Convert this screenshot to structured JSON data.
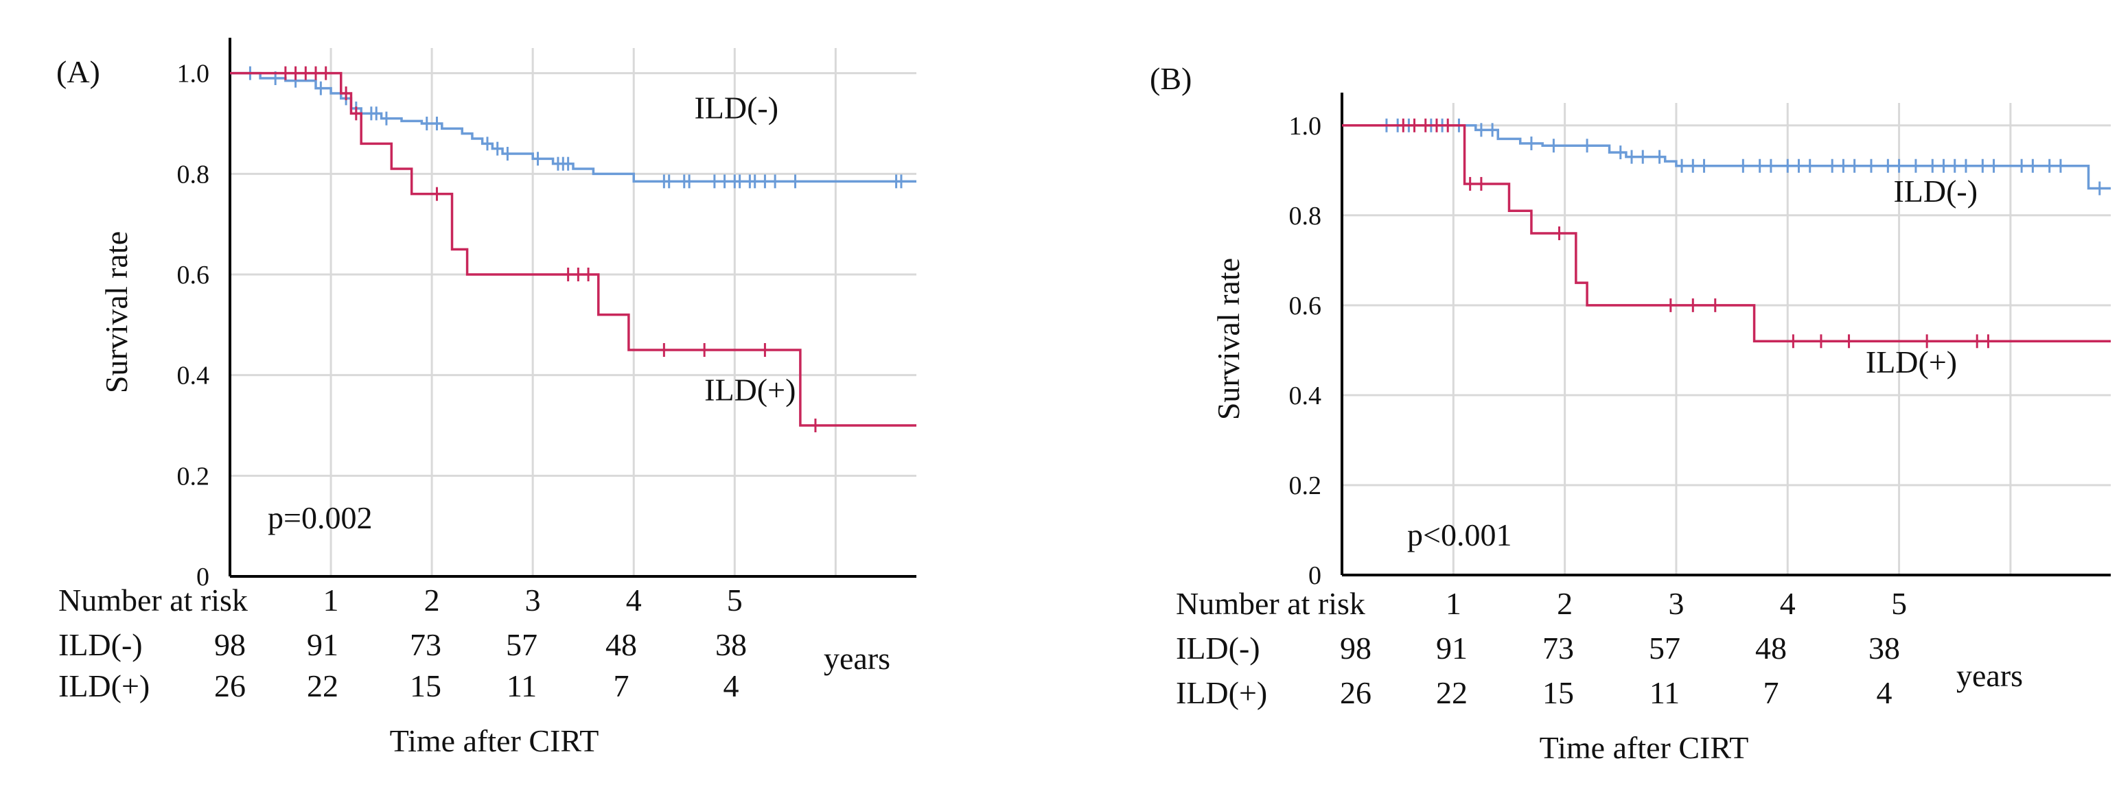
{
  "figure": {
    "colors": {
      "ild_neg": "#6A9BD8",
      "ild_pos": "#C8265A",
      "grid": "#D9D9D9",
      "axis": "#000000"
    }
  },
  "chart_data": [
    {
      "panel_label": "(A)",
      "type": "line",
      "title": "",
      "xlabel": "Time after CIRT",
      "ylabel": "Survival rate",
      "xlim": [
        0,
        6.8
      ],
      "ylim": [
        0,
        1.05
      ],
      "x_tick_values": [
        1,
        2,
        3,
        4,
        5
      ],
      "y_tick_values": [
        0,
        0.2,
        0.4,
        0.6,
        0.8,
        1.0
      ],
      "y_tick_labels": [
        "0",
        "0.2",
        "0.4",
        "0.6",
        "0.8",
        "1.0"
      ],
      "grid": true,
      "p_value": "p=0.002",
      "series": [
        {
          "name": "ILD(-)",
          "color_key": "ild_neg",
          "label_at": [
            4.6,
            0.91
          ],
          "steps": [
            [
              0,
              1.0
            ],
            [
              0.3,
              0.99
            ],
            [
              0.55,
              0.985
            ],
            [
              0.85,
              0.97
            ],
            [
              1.0,
              0.96
            ],
            [
              1.1,
              0.95
            ],
            [
              1.2,
              0.93
            ],
            [
              1.3,
              0.92
            ],
            [
              1.5,
              0.91
            ],
            [
              1.7,
              0.905
            ],
            [
              1.9,
              0.9
            ],
            [
              2.1,
              0.89
            ],
            [
              2.3,
              0.88
            ],
            [
              2.4,
              0.87
            ],
            [
              2.5,
              0.86
            ],
            [
              2.6,
              0.85
            ],
            [
              2.7,
              0.84
            ],
            [
              3.0,
              0.83
            ],
            [
              3.2,
              0.82
            ],
            [
              3.4,
              0.81
            ],
            [
              3.6,
              0.8
            ],
            [
              4.0,
              0.785
            ],
            [
              6.8,
              0.785
            ]
          ],
          "censor_x": [
            0.2,
            0.45,
            0.65,
            0.9,
            1.15,
            1.25,
            1.4,
            1.45,
            1.55,
            1.95,
            2.05,
            2.55,
            2.65,
            2.75,
            3.05,
            3.25,
            3.3,
            3.35,
            4.3,
            4.35,
            4.5,
            4.55,
            4.8,
            4.9,
            5.0,
            5.05,
            5.15,
            5.2,
            5.3,
            5.4,
            5.6,
            6.6,
            6.65
          ]
        },
        {
          "name": "ILD(+)",
          "color_key": "ild_pos",
          "label_at": [
            4.7,
            0.35
          ],
          "steps": [
            [
              0,
              1.0
            ],
            [
              1.0,
              1.0
            ],
            [
              1.1,
              0.96
            ],
            [
              1.2,
              0.92
            ],
            [
              1.3,
              0.86
            ],
            [
              1.6,
              0.86
            ],
            [
              1.6,
              0.81
            ],
            [
              1.8,
              0.81
            ],
            [
              1.8,
              0.76
            ],
            [
              2.2,
              0.76
            ],
            [
              2.2,
              0.65
            ],
            [
              2.35,
              0.65
            ],
            [
              2.35,
              0.6
            ],
            [
              3.65,
              0.6
            ],
            [
              3.65,
              0.52
            ],
            [
              3.95,
              0.52
            ],
            [
              3.95,
              0.45
            ],
            [
              5.65,
              0.45
            ],
            [
              5.65,
              0.3
            ],
            [
              6.8,
              0.3
            ]
          ],
          "censor_x": [
            0.55,
            0.65,
            0.75,
            0.85,
            0.95,
            1.15,
            1.25,
            2.05,
            3.35,
            3.45,
            3.55,
            4.3,
            4.7,
            5.3,
            5.8
          ]
        }
      ],
      "risk_table": {
        "header": "Number at risk",
        "time_labels": [
          "1",
          "2",
          "3",
          "4",
          "5"
        ],
        "units": "years",
        "rows": [
          {
            "label": "ILD(-)",
            "values": [
              "98",
              "91",
              "73",
              "57",
              "48",
              "38"
            ]
          },
          {
            "label": "ILD(+)",
            "values": [
              "26",
              "22",
              "15",
              "11",
              "7",
              "4"
            ]
          }
        ]
      }
    },
    {
      "panel_label": "(B)",
      "type": "line",
      "title": "",
      "xlabel": "Time after CIRT",
      "ylabel": "Survival rate",
      "xlim": [
        0,
        6.9
      ],
      "ylim": [
        0,
        1.05
      ],
      "x_tick_values": [
        1,
        2,
        3,
        4,
        5
      ],
      "y_tick_values": [
        0,
        0.2,
        0.4,
        0.6,
        0.8,
        1.0
      ],
      "y_tick_labels": [
        "0",
        "0.2",
        "0.4",
        "0.6",
        "0.8",
        "1.0"
      ],
      "grid": true,
      "p_value": "p<0.001",
      "series": [
        {
          "name": "ILD(-)",
          "color_key": "ild_neg",
          "label_at": [
            4.95,
            0.83
          ],
          "steps": [
            [
              0,
              1.0
            ],
            [
              1.0,
              1.0
            ],
            [
              1.2,
              0.99
            ],
            [
              1.4,
              0.97
            ],
            [
              1.6,
              0.96
            ],
            [
              1.8,
              0.955
            ],
            [
              2.4,
              0.94
            ],
            [
              2.55,
              0.93
            ],
            [
              2.9,
              0.92
            ],
            [
              3.0,
              0.91
            ],
            [
              6.7,
              0.91
            ],
            [
              6.7,
              0.86
            ],
            [
              6.9,
              0.86
            ]
          ],
          "censor_x": [
            0.4,
            0.5,
            0.6,
            0.8,
            0.9,
            1.05,
            1.25,
            1.35,
            1.7,
            1.9,
            2.2,
            2.5,
            2.6,
            2.7,
            2.85,
            3.05,
            3.15,
            3.25,
            3.6,
            3.75,
            3.85,
            4.0,
            4.1,
            4.2,
            4.4,
            4.5,
            4.6,
            4.75,
            4.9,
            5.0,
            5.15,
            5.3,
            5.4,
            5.5,
            5.6,
            5.75,
            5.85,
            6.1,
            6.2,
            6.35,
            6.45,
            6.8
          ]
        },
        {
          "name": "ILD(+)",
          "color_key": "ild_pos",
          "label_at": [
            4.7,
            0.45
          ],
          "steps": [
            [
              0,
              1.0
            ],
            [
              1.0,
              1.0
            ],
            [
              1.1,
              0.87
            ],
            [
              1.3,
              0.87
            ],
            [
              1.5,
              0.87
            ],
            [
              1.5,
              0.81
            ],
            [
              1.7,
              0.81
            ],
            [
              1.7,
              0.76
            ],
            [
              2.1,
              0.76
            ],
            [
              2.1,
              0.65
            ],
            [
              2.2,
              0.65
            ],
            [
              2.2,
              0.6
            ],
            [
              3.7,
              0.6
            ],
            [
              3.7,
              0.52
            ],
            [
              6.9,
              0.52
            ]
          ],
          "censor_x": [
            0.55,
            0.65,
            0.75,
            0.85,
            0.95,
            1.15,
            1.25,
            1.95,
            2.95,
            3.15,
            3.35,
            4.05,
            4.3,
            4.55,
            5.25,
            5.7,
            5.8
          ]
        }
      ],
      "risk_table": {
        "header": "Number at risk",
        "time_labels": [
          "1",
          "2",
          "3",
          "4",
          "5"
        ],
        "units": "years",
        "rows": [
          {
            "label": "ILD(-)",
            "values": [
              "98",
              "91",
              "73",
              "57",
              "48",
              "38"
            ]
          },
          {
            "label": "ILD(+)",
            "values": [
              "26",
              "22",
              "15",
              "11",
              "7",
              "4"
            ]
          }
        ]
      }
    }
  ]
}
